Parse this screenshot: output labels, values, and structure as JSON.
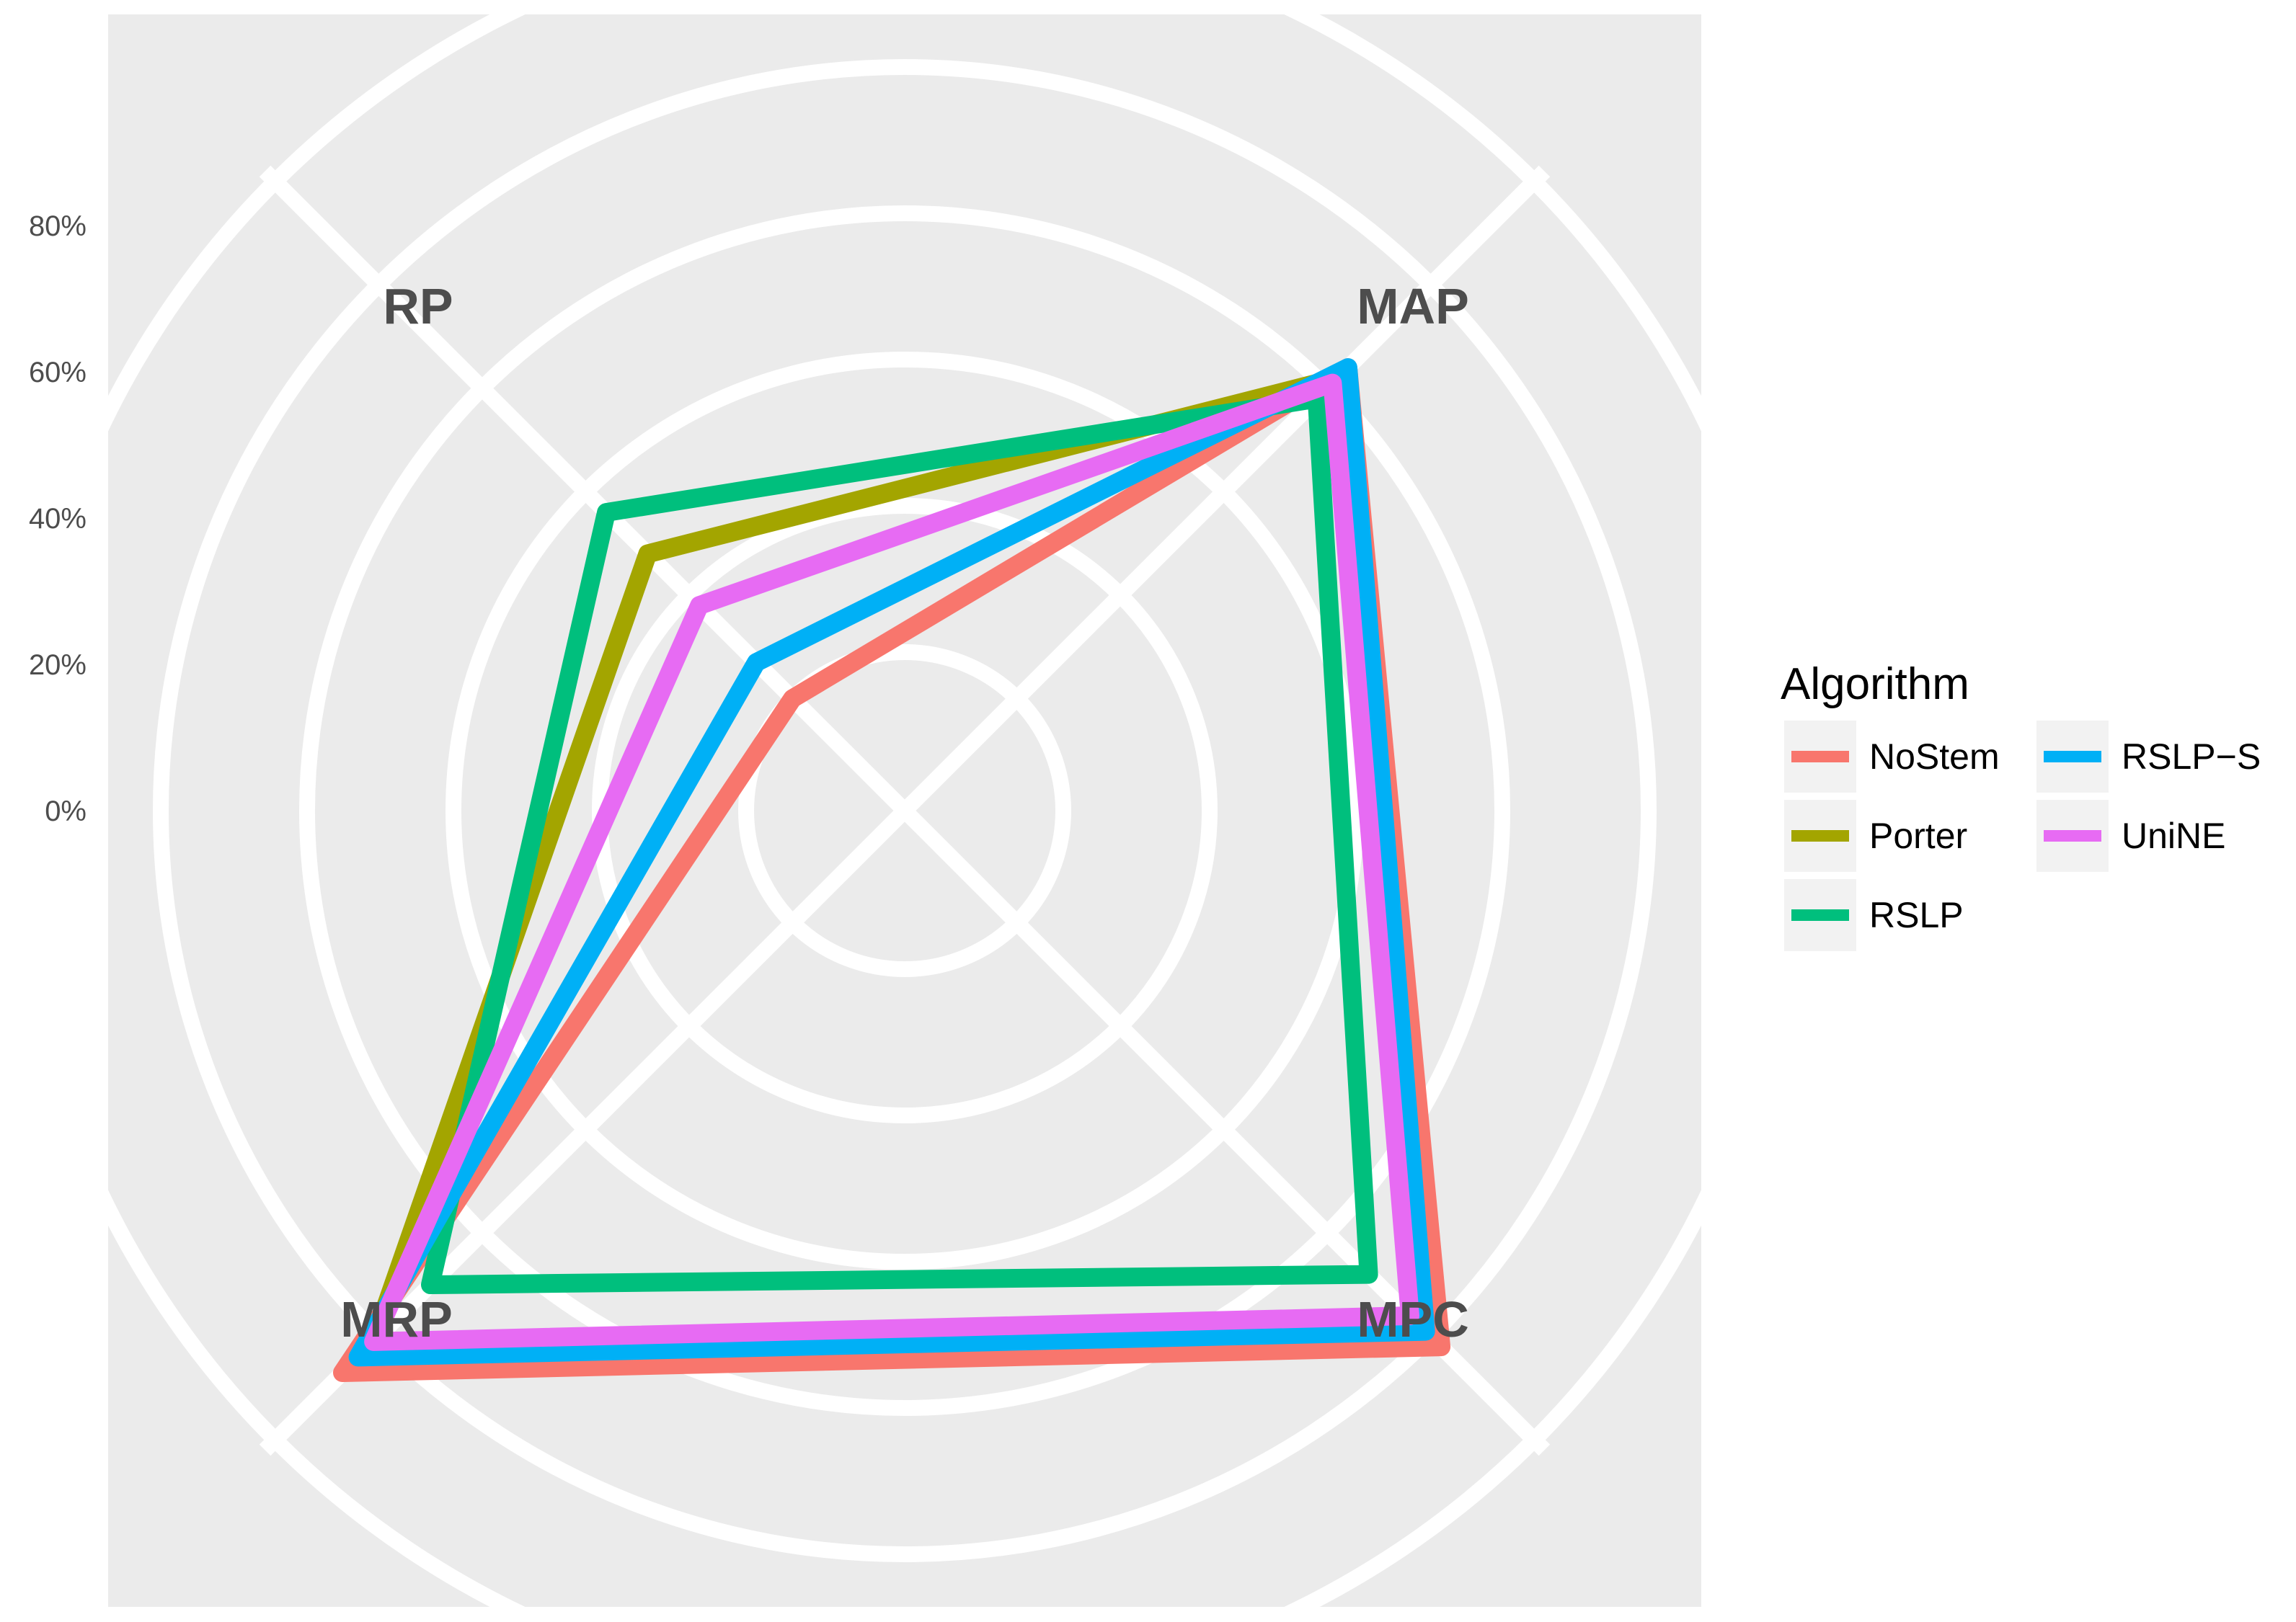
{
  "chart_data": {
    "type": "radar",
    "axes": [
      "MAP",
      "MPC",
      "MRP",
      "RP"
    ],
    "radial_ticks": [
      "0%",
      "20%",
      "40%",
      "60%",
      "80%"
    ],
    "rlim": [
      0,
      100
    ],
    "grid": true,
    "legend": {
      "title": "Algorithm",
      "position": "right",
      "ncol": 2,
      "entries": [
        "NoStem",
        "Porter",
        "RSLP",
        "RSLP−S",
        "UniNE"
      ]
    },
    "series": [
      {
        "name": "NoStem",
        "color": "#F8766D",
        "values": [
          64,
          82,
          87,
          0
        ]
      },
      {
        "name": "Porter",
        "color": "#A3A500",
        "values": [
          62,
          77,
          81,
          28
        ]
      },
      {
        "name": "RSLP",
        "color": "#00BF7D",
        "values": [
          58,
          68,
          70,
          36
        ]
      },
      {
        "name": "RSLP−S",
        "color": "#00B0F6",
        "values": [
          64,
          79,
          84,
          7
        ]
      },
      {
        "name": "UniNE",
        "color": "#E76BF3",
        "values": [
          61,
          76,
          81,
          18
        ]
      }
    ]
  },
  "colors": {
    "panel": "#EBEBEB",
    "grid": "#FFFFFF",
    "legend_key_bg": "#F2F2F2"
  }
}
